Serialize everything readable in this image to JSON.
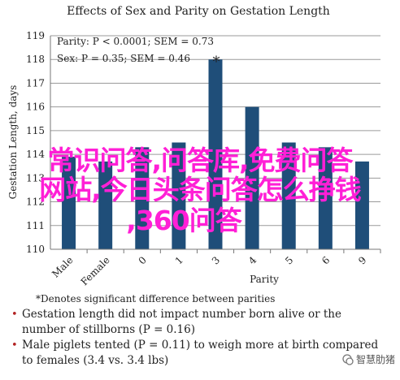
{
  "chart_data": {
    "type": "bar",
    "title": "Effects of Sex and Parity on Gestation Length",
    "ylabel": "Gestation Length, days",
    "xlabel": "Parity",
    "ylim": [
      110,
      119
    ],
    "yticks": [
      110,
      111,
      112,
      113,
      114,
      115,
      116,
      117,
      118,
      119
    ],
    "grid": true,
    "categories": [
      "Male",
      "Female",
      "0",
      "1",
      "3",
      "4",
      "5",
      "6",
      "9"
    ],
    "values": [
      113.9,
      113.7,
      114.3,
      114.5,
      118.0,
      116.0,
      114.5,
      114.3,
      113.7
    ],
    "bar_color": "#1f4e79",
    "annotations": {
      "parity": "Parity: P < 0.0001; SEM = 0.73",
      "sex": "Sex: P = 0.35; SEM = 0.46",
      "star": "*"
    }
  },
  "footnote": "*Denotes significant difference between parities",
  "bullets": [
    "Gestation length did not impact number born alive or the number of stillborns (P = 0.16)",
    "Male piglets tented (P = 0.11) to weigh more at birth compared to females (3.4 vs. 3.4 lbs)"
  ],
  "overlay": {
    "lines": [
      "常识问答,问答库,免费问答",
      "网站,今日头条问答怎么挣钱",
      ",360问答"
    ],
    "color": "#ff1fd6"
  },
  "watermark": "智慧肋猪"
}
